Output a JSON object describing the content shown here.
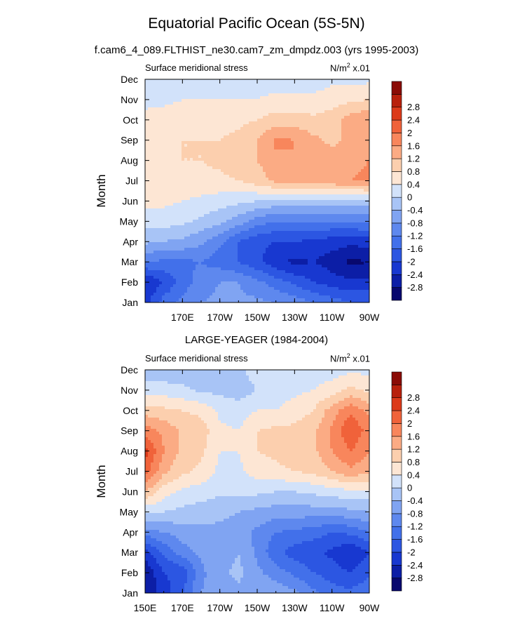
{
  "title": "Equatorial Pacific Ocean (5S-5N)",
  "subtitle": "f.cam6_4_089.FLTHIST_ne30.cam7_zm_dmpdz.003 (yrs 1995-2003)",
  "panel2_title": "LARGE-YEAGER (1984-2004)",
  "panel_left_string": "Surface meridional stress",
  "units_base": "N/m",
  "units_exp": "2",
  "units_suffix": " x.01",
  "ylabel": "Month",
  "chart_data": [
    {
      "type": "heatmap",
      "title": "f.cam6_4_089.FLTHIST_ne30.cam7_zm_dmpdz.003 (yrs 1995-2003)",
      "variable": "Surface meridional stress",
      "units": "N/m^2 x.01",
      "ylabel": "Month",
      "xlim_deg": [
        150,
        270
      ],
      "x_tick_labels": [
        "170E",
        "170W",
        "150W",
        "130W",
        "110W",
        "90W"
      ],
      "x_tick_positions_deg": [
        170,
        190,
        210,
        230,
        250,
        270
      ],
      "y_categories": [
        "Jan",
        "Feb",
        "Mar",
        "Apr",
        "May",
        "Jun",
        "Jul",
        "Aug",
        "Sep",
        "Oct",
        "Nov",
        "Dec"
      ],
      "x_grid_deg": [
        150,
        160,
        170,
        180,
        190,
        200,
        210,
        220,
        230,
        240,
        250,
        260,
        270
      ],
      "values": [
        [
          -2.2,
          -1.4,
          -1.1,
          -0.8,
          -0.7,
          -0.7,
          -0.7,
          -0.8,
          -1.0,
          -1.2,
          -1.4,
          -1.6,
          -1.6
        ],
        [
          -2.4,
          -2.0,
          -1.4,
          -1.0,
          -0.8,
          -0.8,
          -1.1,
          -1.4,
          -1.7,
          -2.0,
          -2.2,
          -2.3,
          -2.3
        ],
        [
          -1.2,
          -1.3,
          -1.3,
          -1.2,
          -1.4,
          -1.6,
          -1.9,
          -2.3,
          -2.5,
          -2.4,
          -2.6,
          -2.9,
          -2.8
        ],
        [
          -0.3,
          -0.4,
          -0.5,
          -0.7,
          -1.1,
          -1.6,
          -1.9,
          -2.0,
          -2.0,
          -2.1,
          -2.2,
          -2.3,
          -2.2
        ],
        [
          0.2,
          0.2,
          0.1,
          -0.1,
          -0.3,
          -0.6,
          -1.0,
          -1.2,
          -1.2,
          -1.2,
          -1.2,
          -1.2,
          -1.1
        ],
        [
          0.5,
          0.5,
          0.4,
          0.3,
          0.2,
          0.1,
          0.0,
          -0.1,
          -0.1,
          -0.2,
          -0.2,
          -0.2,
          -0.2
        ],
        [
          0.6,
          0.7,
          0.7,
          0.7,
          0.7,
          0.8,
          1.0,
          1.3,
          1.4,
          1.5,
          1.5,
          1.6,
          1.7
        ],
        [
          0.6,
          0.7,
          0.8,
          0.8,
          0.9,
          1.0,
          1.2,
          1.5,
          1.6,
          1.5,
          1.4,
          1.5,
          1.6
        ],
        [
          0.6,
          0.7,
          0.8,
          0.8,
          0.8,
          0.9,
          1.2,
          1.7,
          1.6,
          1.3,
          1.1,
          1.3,
          1.5
        ],
        [
          0.5,
          0.6,
          0.7,
          0.7,
          0.7,
          0.7,
          0.8,
          1.0,
          1.0,
          0.9,
          1.0,
          1.4,
          1.6
        ],
        [
          0.3,
          0.3,
          0.4,
          0.4,
          0.4,
          0.4,
          0.4,
          0.5,
          0.5,
          0.5,
          0.6,
          0.7,
          0.8
        ],
        [
          0.1,
          0.1,
          0.1,
          0.1,
          0.2,
          0.2,
          0.2,
          0.2,
          0.2,
          0.2,
          0.3,
          0.3,
          0.3
        ]
      ]
    },
    {
      "type": "heatmap",
      "title": "LARGE-YEAGER (1984-2004)",
      "variable": "Surface meridional stress",
      "units": "N/m^2 x.01",
      "ylabel": "Month",
      "xlim_deg": [
        150,
        270
      ],
      "x_tick_labels": [
        "150E",
        "170E",
        "170W",
        "150W",
        "130W",
        "110W",
        "90W"
      ],
      "x_tick_positions_deg": [
        150,
        170,
        190,
        210,
        230,
        250,
        270
      ],
      "y_categories": [
        "Jan",
        "Feb",
        "Mar",
        "Apr",
        "May",
        "Jun",
        "Jul",
        "Aug",
        "Sep",
        "Oct",
        "Nov",
        "Dec"
      ],
      "x_grid_deg": [
        150,
        160,
        170,
        180,
        190,
        200,
        210,
        220,
        230,
        240,
        250,
        260,
        270
      ],
      "values": [
        [
          -2.8,
          -2.2,
          -1.6,
          -0.8,
          -0.6,
          -0.5,
          -0.4,
          -0.5,
          -0.7,
          -1.1,
          -1.4,
          -1.5,
          -1.3
        ],
        [
          -2.8,
          -2.0,
          -1.9,
          -0.9,
          -0.5,
          -0.3,
          -0.7,
          -1.0,
          -1.3,
          -1.6,
          -1.8,
          -2.0,
          -1.7
        ],
        [
          -2.2,
          -1.5,
          -1.0,
          -0.7,
          -0.6,
          -0.4,
          -0.9,
          -1.5,
          -1.8,
          -1.9,
          -2.1,
          -2.4,
          -2.0
        ],
        [
          -1.0,
          -0.8,
          -0.6,
          -0.5,
          -0.5,
          -0.6,
          -0.9,
          -1.2,
          -1.3,
          -1.4,
          -1.6,
          -1.5,
          -1.2
        ],
        [
          0.1,
          0.0,
          -0.1,
          -0.2,
          -0.3,
          -0.4,
          -0.5,
          -0.6,
          -0.6,
          -0.6,
          -0.6,
          -0.5,
          -0.4
        ],
        [
          1.2,
          0.6,
          0.3,
          0.2,
          0.1,
          0.1,
          0.1,
          0.0,
          0.0,
          0.1,
          0.2,
          0.3,
          0.3
        ],
        [
          2.2,
          1.3,
          0.9,
          0.7,
          0.3,
          0.3,
          0.6,
          0.7,
          0.8,
          0.9,
          1.2,
          1.5,
          1.3
        ],
        [
          2.6,
          1.6,
          1.1,
          0.9,
          0.4,
          0.4,
          0.8,
          0.9,
          1.1,
          1.1,
          1.6,
          2.0,
          1.6
        ],
        [
          1.8,
          1.5,
          1.1,
          1.0,
          0.5,
          0.4,
          0.8,
          0.9,
          0.9,
          1.1,
          1.7,
          2.4,
          1.8
        ],
        [
          1.0,
          0.9,
          0.8,
          0.7,
          0.3,
          0.2,
          0.4,
          0.4,
          0.6,
          0.8,
          1.4,
          1.9,
          1.5
        ],
        [
          0.2,
          0.2,
          0.1,
          -0.1,
          -0.1,
          -0.2,
          0.0,
          0.2,
          0.3,
          0.4,
          0.6,
          0.9,
          0.7
        ],
        [
          -0.2,
          -0.3,
          -0.3,
          -0.2,
          -0.2,
          -0.1,
          0.2,
          0.4,
          0.3,
          0.2,
          0.2,
          0.3,
          0.3
        ]
      ]
    }
  ],
  "colorbar": {
    "labels": [
      "-2.8",
      "-2.4",
      "-2",
      "-1.6",
      "-1.2",
      "-0.8",
      "-0.4",
      "0",
      "0.4",
      "0.8",
      "1.2",
      "1.6",
      "2",
      "2.4",
      "2.8"
    ],
    "levels": [
      -2.8,
      -2.4,
      -2.0,
      -1.6,
      -1.2,
      -0.8,
      -0.4,
      0,
      0.4,
      0.8,
      1.2,
      1.6,
      2.0,
      2.4,
      2.8
    ],
    "colors": [
      "#08086e",
      "#0c1ea6",
      "#1838d0",
      "#2c56e2",
      "#4270ea",
      "#5e88ee",
      "#80a4f2",
      "#a8c4f6",
      "#d2e2fa",
      "#fde6d4",
      "#fccfae",
      "#fbab84",
      "#f8865c",
      "#f0623a",
      "#dc3a1a",
      "#b8200c",
      "#8a0c06"
    ]
  }
}
